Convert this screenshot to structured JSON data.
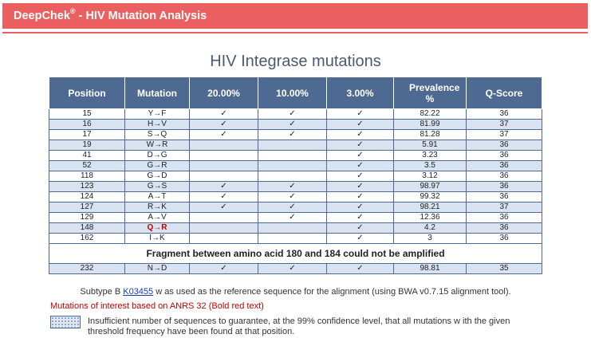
{
  "header": {
    "brand": "DeepChek",
    "registered": "®",
    "subtitle": " - HIV Mutation Analysis"
  },
  "title": "HIV Integrase mutations",
  "table": {
    "columns": [
      "Position",
      "Mutation",
      "20.00%",
      "10.00%",
      "3.00%",
      "Prevalence %",
      "Q-Score"
    ],
    "rows": [
      {
        "position": "15",
        "mutation": "Y→F",
        "c20": "✓",
        "c10": "✓",
        "c3": "✓",
        "prevalence": "82.22",
        "qscore": "36"
      },
      {
        "position": "16",
        "mutation": "H→V",
        "c20": "✓",
        "c10": "✓",
        "c3": "✓",
        "prevalence": "81.99",
        "qscore": "37"
      },
      {
        "position": "17",
        "mutation": "S→Q",
        "c20": "✓",
        "c10": "✓",
        "c3": "✓",
        "prevalence": "81.28",
        "qscore": "37"
      },
      {
        "position": "19",
        "mutation": "W→R",
        "c20": "",
        "c10": "",
        "c3": "✓",
        "prevalence": "5.91",
        "qscore": "36"
      },
      {
        "position": "41",
        "mutation": "D→G",
        "c20": "",
        "c10": "",
        "c3": "✓",
        "prevalence": "3.23",
        "qscore": "36"
      },
      {
        "position": "52",
        "mutation": "G→R",
        "c20": "",
        "c10": "",
        "c3": "✓",
        "prevalence": "3.5",
        "qscore": "36"
      },
      {
        "position": "118",
        "mutation": "G→D",
        "c20": "",
        "c10": "",
        "c3": "✓",
        "prevalence": "3.12",
        "qscore": "36"
      },
      {
        "position": "123",
        "mutation": "G→S",
        "c20": "✓",
        "c10": "✓",
        "c3": "✓",
        "prevalence": "98.97",
        "qscore": "36"
      },
      {
        "position": "124",
        "mutation": "A→T",
        "c20": "✓",
        "c10": "✓",
        "c3": "✓",
        "prevalence": "99.32",
        "qscore": "36"
      },
      {
        "position": "127",
        "mutation": "R→K",
        "c20": "✓",
        "c10": "✓",
        "c3": "✓",
        "prevalence": "98.21",
        "qscore": "37"
      },
      {
        "position": "129",
        "mutation": "A→V",
        "c20": "",
        "c10": "✓",
        "c3": "✓",
        "prevalence": "12.36",
        "qscore": "36"
      },
      {
        "position": "148",
        "mutation": "Q→R",
        "c20": "",
        "c10": "",
        "c3": "✓",
        "prevalence": "4.2",
        "qscore": "36",
        "bold_red": true
      },
      {
        "position": "162",
        "mutation": "I→K",
        "c20": "",
        "c10": "",
        "c3": "✓",
        "prevalence": "3",
        "qscore": "36"
      }
    ],
    "fragment_note": "Fragment between amino acid 180 and 184 could not be amplified",
    "after_rows": [
      {
        "position": "232",
        "mutation": "N→D",
        "c20": "✓",
        "c10": "✓",
        "c3": "✓",
        "prevalence": "98.81",
        "qscore": "35"
      }
    ]
  },
  "footer": {
    "subtype_prefix": "Subtype B ",
    "reference_link": "K03455",
    "subtype_suffix": " w as used as the reference sequence for the alignment (using BWA v0.7.15 alignment tool).",
    "interest_note": "Mutations of interest based on ANRS 32 (Bold red text)",
    "legend_text": "Insufficient number of sequences to guarantee, at the 99% confidence level, that all mutations w ith the given threshold frequency have been found at that position."
  },
  "colors": {
    "banner": "#ea5f5f",
    "table_header": "#4f6a92",
    "row_alt": "#d8e2f1",
    "mutation_of_interest": "#c00000",
    "link": "#1a3eb8"
  }
}
